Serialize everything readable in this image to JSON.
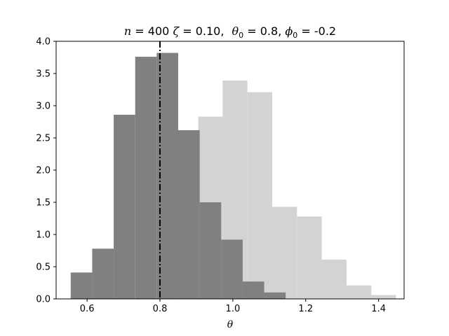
{
  "chart_data": {
    "type": "bar",
    "title": {
      "n_symbol": "n",
      "n_value": "400",
      "zeta_symbol": "ζ",
      "zeta_value": "0.10,",
      "theta0_symbol": "θ",
      "theta0_sub": "0",
      "theta0_value": "0.8,",
      "phi0_symbol": "ϕ",
      "phi0_sub": "0",
      "phi0_value": "-0.2",
      "equals": "="
    },
    "xlabel": "θ",
    "ylabel": "",
    "xlim": [
      0.515,
      1.47
    ],
    "ylim": [
      0,
      4.0
    ],
    "xticks": [
      0.6,
      0.8,
      1.0,
      1.2,
      1.4
    ],
    "xtick_labels": [
      "0.6",
      "0.8",
      "1.0",
      "1.2",
      "1.4"
    ],
    "yticks": [
      0.0,
      0.5,
      1.0,
      1.5,
      2.0,
      2.5,
      3.0,
      3.5,
      4.0
    ],
    "ytick_labels": [
      "0.0",
      "0.5",
      "1.0",
      "1.5",
      "2.0",
      "2.5",
      "3.0",
      "3.5",
      "4.0"
    ],
    "reference_line": {
      "x": 0.8,
      "style": "dash-dot",
      "color": "#000000"
    },
    "series": [
      {
        "color": "#d3d3d3",
        "bins": [
          {
            "x0": 0.905,
            "x1": 0.972,
            "value": 2.83
          },
          {
            "x0": 0.972,
            "x1": 1.04,
            "value": 3.39
          },
          {
            "x0": 1.04,
            "x1": 1.108,
            "value": 3.21
          },
          {
            "x0": 1.108,
            "x1": 1.176,
            "value": 1.43
          },
          {
            "x0": 1.176,
            "x1": 1.244,
            "value": 1.28
          },
          {
            "x0": 1.244,
            "x1": 1.312,
            "value": 0.61
          },
          {
            "x0": 1.312,
            "x1": 1.38,
            "value": 0.21
          },
          {
            "x0": 1.38,
            "x1": 1.448,
            "value": 0.06
          }
        ]
      },
      {
        "color": "#808080",
        "bins": [
          {
            "x0": 0.555,
            "x1": 0.614,
            "value": 0.41
          },
          {
            "x0": 0.614,
            "x1": 0.673,
            "value": 0.78
          },
          {
            "x0": 0.673,
            "x1": 0.732,
            "value": 2.86
          },
          {
            "x0": 0.732,
            "x1": 0.791,
            "value": 3.76
          },
          {
            "x0": 0.791,
            "x1": 0.85,
            "value": 3.82
          },
          {
            "x0": 0.85,
            "x1": 0.909,
            "value": 2.62
          },
          {
            "x0": 0.909,
            "x1": 0.968,
            "value": 1.5
          },
          {
            "x0": 0.968,
            "x1": 1.027,
            "value": 0.92
          },
          {
            "x0": 1.027,
            "x1": 1.086,
            "value": 0.27
          },
          {
            "x0": 1.086,
            "x1": 1.145,
            "value": 0.1
          }
        ]
      }
    ]
  }
}
